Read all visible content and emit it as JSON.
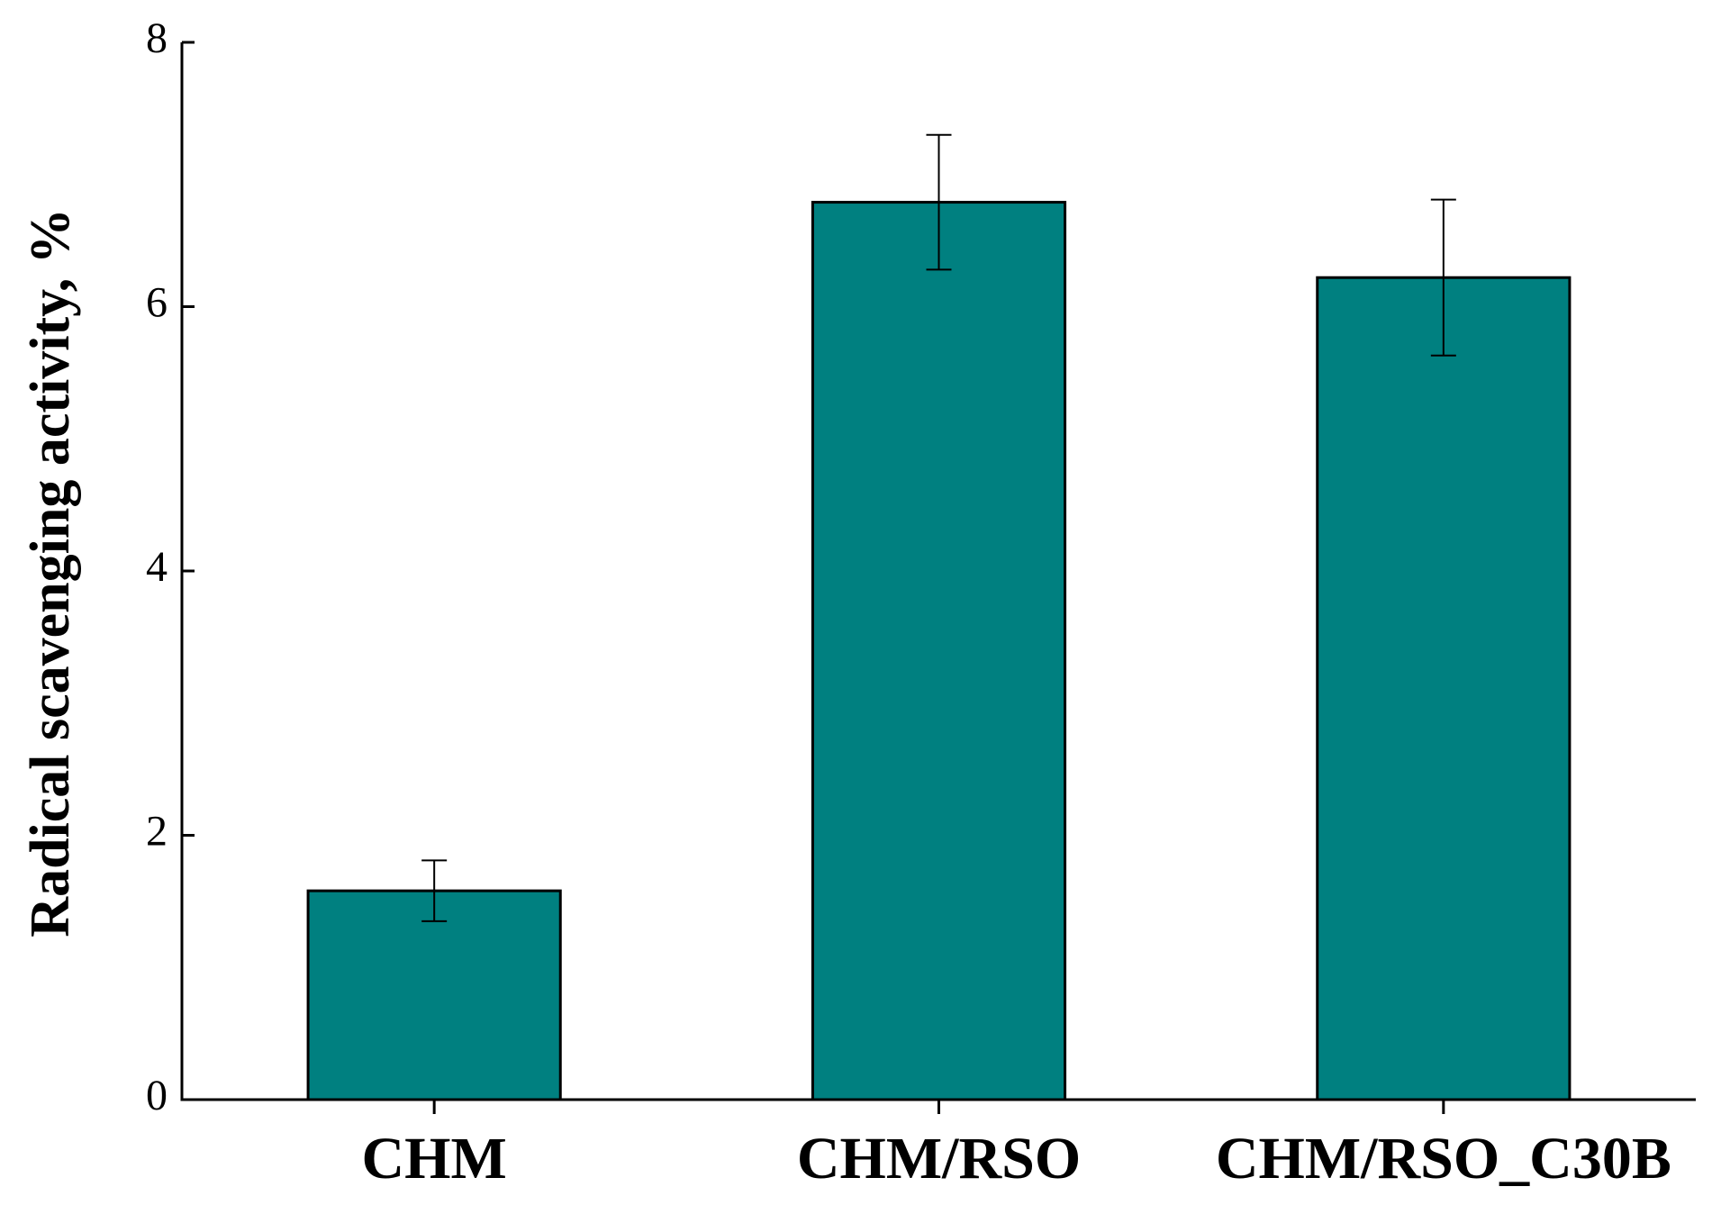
{
  "chart_data": {
    "type": "bar",
    "y_label": "Radical scavenging activity, %",
    "categories": [
      "CHM",
      "CHM/RSO",
      "CHM/RSO_C30B"
    ],
    "values": [
      1.58,
      6.79,
      6.22
    ],
    "errors": [
      0.23,
      0.51,
      0.59
    ],
    "color": "#008080",
    "ylim": [
      0,
      8
    ],
    "yticks": [
      0,
      2,
      4,
      6,
      8
    ],
    "grid": false
  }
}
